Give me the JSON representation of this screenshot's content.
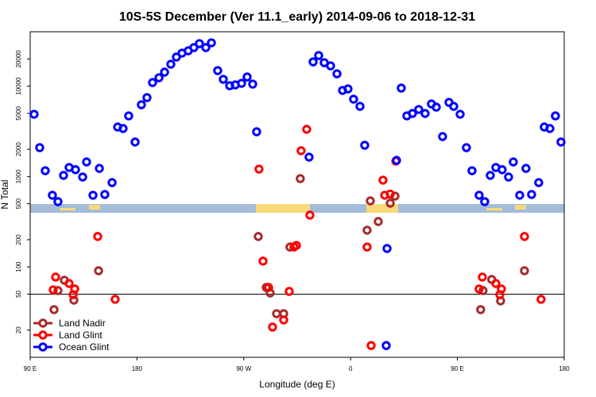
{
  "chart_data": {
    "type": "scatter",
    "title": "10S-5S December (Ver 11.1_early)   2014-09-06 to 2018-12-31",
    "x_label": "Longitude (deg E)",
    "y_label": "N Total",
    "xlim": [
      90,
      540
    ],
    "xticks": [
      {
        "value": 90,
        "label": "90 E"
      },
      180,
      {
        "value": 270,
        "label": "90 W"
      },
      {
        "value": 360,
        "label": "0"
      },
      {
        "value": 450,
        "label": "90 E"
      },
      {
        "value": 540,
        "label": "180"
      }
    ],
    "ylim": [
      10,
      40000
    ],
    "yticks": [
      20,
      50,
      100,
      200,
      500,
      1000,
      2000,
      5000,
      10000,
      20000
    ],
    "log_y": true,
    "hline": 50,
    "legend": "bottom-left",
    "series": [
      {
        "name": "Land Nadir",
        "color": "#a52a2a",
        "x": [
          110.1,
          113.4,
          118.8,
          126.8,
          147.6,
          469.6,
          471.6,
          478.9,
          486.4,
          506.5,
          282.2,
          288.9,
          292.2,
          297.6,
          303.6,
          308.9,
          317.6,
          376.6,
          373.9,
          383.3,
          393.4,
          397.4
        ],
        "values": [
          33.7,
          54.7,
          71.2,
          42.9,
          90.7,
          33.7,
          54.7,
          72.6,
          42.1,
          90.7,
          217,
          59.3,
          51.5,
          30.4,
          30.4,
          166,
          949,
          538,
          255,
          318,
          507,
          608
        ]
      },
      {
        "name": "Land Glint",
        "color": "#ff0000",
        "x": [
          109.4,
          111.4,
          122.8,
          127.5,
          126.2,
          146.9,
          161.6,
          282.8,
          286.2,
          290.9,
          294.2,
          303.6,
          308.3,
          312.3,
          314.3,
          318.3,
          323,
          325.7,
          373.9,
          377.3,
          387.3,
          388.7,
          393.4,
          398.1,
          468.3,
          471,
          482.4,
          487.1,
          485.7,
          506.5,
          520.5
        ],
        "values": [
          55.8,
          77.2,
          65.6,
          57,
          49.4,
          217,
          43.8,
          1210,
          116,
          59.3,
          21.6,
          25.9,
          53.6,
          166,
          173,
          1930,
          3330,
          374,
          166,
          13.5,
          912,
          621,
          640,
          1480,
          57,
          77.2,
          65.6,
          57,
          49.4,
          217,
          43.8
        ]
      },
      {
        "name": "Ocean Glint",
        "color": "#0000ff",
        "x": [
          93.3,
          98,
          102.7,
          108.7,
          113.4,
          118.1,
          122.8,
          128.2,
          134.2,
          137.5,
          142.9,
          148.3,
          152.9,
          159,
          163.7,
          168.3,
          173,
          178.4,
          183.7,
          188.4,
          193.1,
          198.5,
          203.2,
          208.5,
          213.2,
          217.9,
          223.2,
          227.9,
          232.6,
          238,
          242.7,
          248,
          252.7,
          258.1,
          262.8,
          268.1,
          272.8,
          277.5,
          280.8,
          325,
          328.4,
          333.1,
          337.8,
          343.1,
          348.5,
          353.2,
          357.8,
          362.5,
          367.9,
          371.9,
          390.7,
          398.7,
          402.7,
          407.4,
          412.1,
          417.4,
          422.8,
          428.1,
          432.2,
          437.5,
          442.9,
          446.9,
          452.3,
          457.6,
          462.3,
          468.3,
          473,
          477.7,
          482.4,
          487.7,
          493.1,
          497.1,
          502.5,
          507.8,
          512.5,
          518.5,
          523.2,
          527.9,
          532.6,
          537.3,
          390
        ],
        "values": [
          4890,
          2090,
          1160,
          621,
          528,
          1030,
          1260,
          1190,
          988,
          1450,
          621,
          1230,
          633,
          857,
          3530,
          3400,
          4690,
          2410,
          6230,
          7470,
          10970,
          12390,
          14290,
          17490,
          20990,
          23210,
          24660,
          26730,
          29580,
          26730,
          30200,
          14860,
          11910,
          10120,
          10330,
          10760,
          12650,
          10540,
          3130,
          1640,
          18570,
          21830,
          18200,
          16790,
          13710,
          8970,
          9330,
          7180,
          5980,
          2220,
          160,
          1510,
          9530,
          4690,
          4990,
          5520,
          4990,
          6360,
          5860,
          2770,
          6620,
          5980,
          4890,
          2090,
          1160,
          621,
          528,
          1030,
          1260,
          1190,
          988,
          1450,
          621,
          1230,
          633,
          857,
          3530,
          3400,
          4690,
          2410,
          13.5
        ]
      }
    ]
  }
}
